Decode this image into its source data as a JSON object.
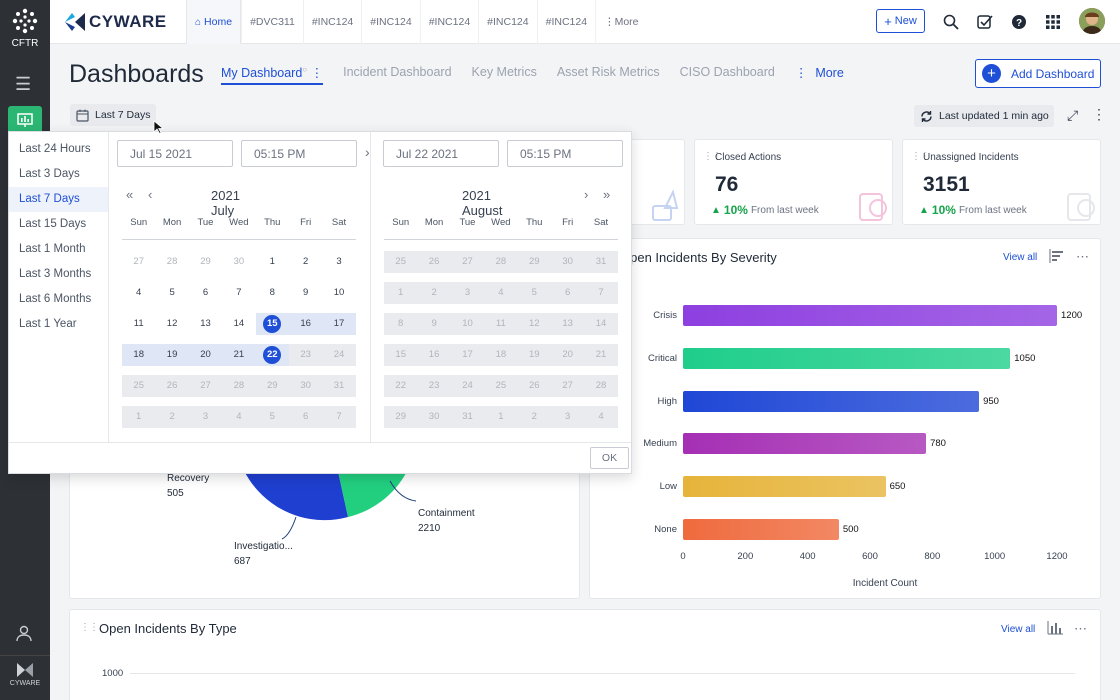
{
  "rail": {
    "org": "CFTR",
    "bottom_brand": "CYWARE"
  },
  "brand": {
    "name": "CYWARE"
  },
  "top_tabs": [
    {
      "label": "Home",
      "icon": "home-icon"
    },
    {
      "label": "#DVC311"
    },
    {
      "label": "#INC124"
    },
    {
      "label": "#INC124"
    },
    {
      "label": "#INC124"
    },
    {
      "label": "#INC124"
    },
    {
      "label": "#INC124"
    },
    {
      "label": "More"
    }
  ],
  "top_actions": {
    "new_label": "New"
  },
  "page": {
    "title": "Dashboards",
    "add_label": "Add Dashboard"
  },
  "dash_tabs": [
    {
      "label": "My Dashboard",
      "active": true
    },
    {
      "label": "Incident Dashboard"
    },
    {
      "label": "Key Metrics"
    },
    {
      "label": "Asset Risk Metrics"
    },
    {
      "label": "CISO Dashboard"
    },
    {
      "label": "More"
    }
  ],
  "range_button": {
    "label": "Last 7 Days"
  },
  "last_updated": "Last updated 1 min ago",
  "stats": [
    {
      "label": "Closed Actions",
      "value": "76",
      "change": "10%",
      "change_text": "From last week"
    },
    {
      "label": "Unassigned Incidents",
      "value": "3151",
      "change": "10%",
      "change_text": "From last week"
    }
  ],
  "picker": {
    "presets": [
      "Last 24 Hours",
      "Last 3 Days",
      "Last 7 Days",
      "Last 15 Days",
      "Last 1 Month",
      "Last 3 Months",
      "Last 6 Months",
      "Last 1 Year"
    ],
    "selected_preset": "Last 7 Days",
    "start_date": "Jul 15 2021",
    "start_time": "05:15 PM",
    "end_date": "Jul 22 2021",
    "end_time": "05:15 PM",
    "dows": [
      "Sun",
      "Mon",
      "Tue",
      "Wed",
      "Thu",
      "Fri",
      "Sat"
    ],
    "left_title": "2021 July",
    "right_title": "2021 August",
    "july": [
      [
        "27",
        "28",
        "29",
        "30",
        "1",
        "2",
        "3"
      ],
      [
        "4",
        "5",
        "6",
        "7",
        "8",
        "9",
        "10"
      ],
      [
        "11",
        "12",
        "13",
        "14",
        "15",
        "16",
        "17"
      ],
      [
        "18",
        "19",
        "20",
        "21",
        "22",
        "23",
        "24"
      ],
      [
        "25",
        "26",
        "27",
        "28",
        "29",
        "30",
        "31"
      ],
      [
        "1",
        "2",
        "3",
        "4",
        "5",
        "6",
        "7"
      ]
    ],
    "august": [
      [
        "25",
        "26",
        "27",
        "28",
        "29",
        "30",
        "31"
      ],
      [
        "1",
        "2",
        "3",
        "4",
        "5",
        "6",
        "7"
      ],
      [
        "8",
        "9",
        "10",
        "11",
        "12",
        "13",
        "14"
      ],
      [
        "15",
        "16",
        "17",
        "18",
        "19",
        "20",
        "21"
      ],
      [
        "22",
        "23",
        "24",
        "25",
        "26",
        "27",
        "28"
      ],
      [
        "29",
        "30",
        "31",
        "1",
        "2",
        "3",
        "4"
      ]
    ],
    "ok_label": "OK"
  },
  "severity_card": {
    "title": "Open Incidents By Severity",
    "view_all": "View all"
  },
  "chart_data": {
    "type": "bar",
    "orientation": "horizontal",
    "title": "Open Incidents By Severity",
    "categories": [
      "Crisis",
      "Critical",
      "High",
      "Medium",
      "Low",
      "None"
    ],
    "values": [
      1200,
      1050,
      950,
      780,
      650,
      500
    ],
    "xlabel": "Incident Count",
    "xlim": [
      0,
      1200
    ],
    "xticks": [
      "0",
      "200",
      "400",
      "600",
      "800",
      "1000",
      "1200"
    ],
    "colors": [
      "#8e3fe0",
      "#1fce8a",
      "#1f47d6",
      "#a52fb4",
      "#e6b43a",
      "#ef6a3d"
    ]
  },
  "pie": {
    "labels": [
      {
        "name": "Recovery",
        "value": "505"
      },
      {
        "name": "Containment",
        "value": "2210"
      },
      {
        "name": "Investigatio...",
        "value": "687"
      }
    ]
  },
  "type_card": {
    "title": "Open Incidents By Type",
    "view_all": "View all",
    "y_tick": "1000"
  }
}
